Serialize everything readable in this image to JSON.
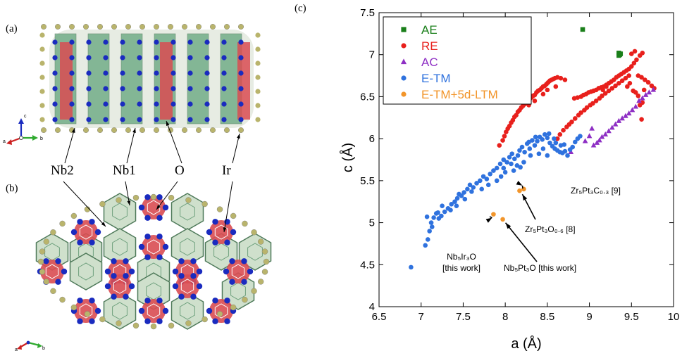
{
  "panels": {
    "a": "(a)",
    "b": "(b)",
    "c": "(c)"
  },
  "structure": {
    "labels": {
      "nb2": "Nb2",
      "nb1": "Nb1",
      "o": "O",
      "ir": "Ir"
    },
    "axes_a": {
      "c": "c",
      "a": "a",
      "b": "b"
    },
    "axes_b": {
      "a": "a",
      "b": "b"
    },
    "colors": {
      "nb": "#1a2bbf",
      "ir": "#b9b46c",
      "o": "#d33030",
      "poly_green": "#4f9a6c",
      "poly_red": "#d94c52"
    }
  },
  "chart_data": {
    "type": "scatter",
    "xlabel": "a (Å)",
    "ylabel": "c (Å)",
    "xlim": [
      6.5,
      10
    ],
    "ylim": [
      4,
      7.5
    ],
    "xticks": [
      "6.5",
      "7",
      "7.5",
      "8",
      "8.5",
      "9",
      "9.5",
      "10"
    ],
    "yticks": [
      "4",
      "4.5",
      "5",
      "5.5",
      "6",
      "6.5",
      "7",
      "7.5"
    ],
    "legend_position": "top-left",
    "series": [
      {
        "name": "AE",
        "marker": "square",
        "color": "#1a7f1a",
        "points": [
          [
            8.92,
            7.3
          ],
          [
            9.35,
            7.02
          ],
          [
            9.36,
            7.0
          ],
          [
            9.37,
            7.01
          ],
          [
            9.35,
            6.99
          ]
        ]
      },
      {
        "name": "RE",
        "marker": "circle",
        "color": "#e8201c",
        "points": [
          [
            7.93,
            5.92
          ],
          [
            7.97,
            5.98
          ],
          [
            7.99,
            6.03
          ],
          [
            8.01,
            6.08
          ],
          [
            8.03,
            6.12
          ],
          [
            8.05,
            6.15
          ],
          [
            8.07,
            6.19
          ],
          [
            8.09,
            6.22
          ],
          [
            8.11,
            6.26
          ],
          [
            8.13,
            6.28
          ],
          [
            8.15,
            6.32
          ],
          [
            8.17,
            6.34
          ],
          [
            8.19,
            6.37
          ],
          [
            8.21,
            6.39
          ],
          [
            8.23,
            6.41
          ],
          [
            8.25,
            6.43
          ],
          [
            8.27,
            6.45
          ],
          [
            8.29,
            6.47
          ],
          [
            8.31,
            6.49
          ],
          [
            8.33,
            6.51
          ],
          [
            8.35,
            6.52
          ],
          [
            8.37,
            6.55
          ],
          [
            8.39,
            6.57
          ],
          [
            8.41,
            6.58
          ],
          [
            8.43,
            6.6
          ],
          [
            8.45,
            6.62
          ],
          [
            8.47,
            6.63
          ],
          [
            8.49,
            6.65
          ],
          [
            8.51,
            6.67
          ],
          [
            8.53,
            6.69
          ],
          [
            8.55,
            6.7
          ],
          [
            8.57,
            6.71
          ],
          [
            8.59,
            6.72
          ],
          [
            8.62,
            6.73
          ],
          [
            8.66,
            6.72
          ],
          [
            8.71,
            6.7
          ],
          [
            8.82,
            6.48
          ],
          [
            8.86,
            6.49
          ],
          [
            8.9,
            6.5
          ],
          [
            8.93,
            6.52
          ],
          [
            8.96,
            6.53
          ],
          [
            8.99,
            6.55
          ],
          [
            9.02,
            6.56
          ],
          [
            9.05,
            6.57
          ],
          [
            9.08,
            6.58
          ],
          [
            9.11,
            6.6
          ],
          [
            9.14,
            6.61
          ],
          [
            9.17,
            6.62
          ],
          [
            9.2,
            6.64
          ],
          [
            9.23,
            6.66
          ],
          [
            9.26,
            6.68
          ],
          [
            9.29,
            6.7
          ],
          [
            9.32,
            6.73
          ],
          [
            9.35,
            6.75
          ],
          [
            9.38,
            6.77
          ],
          [
            9.41,
            6.79
          ],
          [
            9.44,
            6.81
          ],
          [
            9.47,
            6.83
          ],
          [
            9.5,
            6.86
          ],
          [
            9.53,
            6.9
          ],
          [
            9.56,
            6.94
          ],
          [
            9.6,
            6.99
          ],
          [
            9.63,
            7.02
          ],
          [
            9.5,
            7.01
          ],
          [
            9.54,
            7.04
          ],
          [
            9.58,
            6.75
          ],
          [
            9.62,
            6.73
          ],
          [
            9.66,
            6.7
          ],
          [
            9.7,
            6.67
          ],
          [
            9.74,
            6.63
          ],
          [
            9.77,
            6.6
          ],
          [
            8.62,
            6.0
          ],
          [
            8.65,
            6.05
          ],
          [
            8.69,
            6.1
          ],
          [
            8.73,
            6.14
          ],
          [
            8.76,
            6.17
          ],
          [
            8.79,
            6.2
          ],
          [
            8.83,
            6.24
          ],
          [
            8.87,
            6.28
          ],
          [
            8.9,
            6.31
          ],
          [
            8.94,
            6.34
          ],
          [
            8.97,
            6.37
          ],
          [
            9.01,
            6.4
          ],
          [
            9.04,
            6.42
          ],
          [
            9.08,
            6.45
          ],
          [
            9.12,
            6.48
          ],
          [
            9.15,
            6.51
          ],
          [
            9.19,
            6.54
          ],
          [
            9.23,
            6.57
          ],
          [
            9.27,
            6.6
          ],
          [
            9.31,
            6.63
          ],
          [
            9.35,
            6.66
          ],
          [
            9.39,
            6.69
          ],
          [
            9.43,
            6.72
          ],
          [
            9.47,
            6.75
          ],
          [
            9.52,
            6.57
          ],
          [
            9.55,
            6.55
          ],
          [
            9.6,
            6.4
          ],
          [
            9.63,
            6.43
          ],
          [
            9.62,
            6.23
          ],
          [
            9.58,
            6.51
          ],
          [
            9.65,
            6.58
          ],
          [
            8.45,
            6.53
          ],
          [
            8.5,
            6.58
          ],
          [
            8.6,
            6.62
          ],
          [
            8.35,
            6.45
          ],
          [
            8.28,
            6.4
          ],
          [
            9.16,
            6.58
          ],
          [
            9.2,
            6.62
          ],
          [
            9.45,
            6.62
          ],
          [
            9.48,
            6.66
          ]
        ]
      },
      {
        "name": "AC",
        "marker": "triangle",
        "color": "#8e2fc4",
        "points": [
          [
            9.05,
            5.92
          ],
          [
            9.09,
            5.95
          ],
          [
            9.12,
            5.98
          ],
          [
            9.15,
            6.02
          ],
          [
            9.19,
            6.05
          ],
          [
            9.23,
            6.09
          ],
          [
            9.27,
            6.13
          ],
          [
            9.31,
            6.17
          ],
          [
            9.35,
            6.21
          ],
          [
            9.39,
            6.24
          ],
          [
            9.43,
            6.27
          ],
          [
            9.47,
            6.3
          ],
          [
            9.51,
            6.34
          ],
          [
            9.55,
            6.38
          ],
          [
            9.59,
            6.45
          ],
          [
            9.63,
            6.48
          ],
          [
            9.67,
            6.52
          ],
          [
            9.71,
            6.55
          ],
          [
            9.76,
            6.58
          ],
          [
            8.78,
            5.84
          ],
          [
            8.95,
            5.97
          ],
          [
            9.03,
            6.12
          ],
          [
            9.0,
            6.03
          ]
        ]
      },
      {
        "name": "E-TM",
        "marker": "circle",
        "color": "#2f72de",
        "points": [
          [
            6.88,
            4.47
          ],
          [
            7.05,
            4.73
          ],
          [
            7.08,
            4.8
          ],
          [
            7.1,
            4.9
          ],
          [
            7.07,
            5.07
          ],
          [
            7.12,
            5.0
          ],
          [
            7.15,
            5.06
          ],
          [
            7.18,
            5.11
          ],
          [
            7.21,
            5.05
          ],
          [
            7.24,
            5.08
          ],
          [
            7.28,
            5.13
          ],
          [
            7.32,
            5.17
          ],
          [
            7.36,
            5.22
          ],
          [
            7.4,
            5.25
          ],
          [
            7.43,
            5.29
          ],
          [
            7.45,
            5.34
          ],
          [
            7.48,
            5.32
          ],
          [
            7.51,
            5.36
          ],
          [
            7.55,
            5.4
          ],
          [
            7.58,
            5.45
          ],
          [
            7.62,
            5.42
          ],
          [
            7.66,
            5.47
          ],
          [
            7.7,
            5.5
          ],
          [
            7.74,
            5.55
          ],
          [
            7.78,
            5.52
          ],
          [
            7.82,
            5.58
          ],
          [
            7.86,
            5.62
          ],
          [
            7.9,
            5.65
          ],
          [
            7.94,
            5.7
          ],
          [
            7.98,
            5.75
          ],
          [
            8.02,
            5.72
          ],
          [
            8.05,
            5.78
          ],
          [
            8.08,
            5.82
          ],
          [
            8.11,
            5.76
          ],
          [
            8.14,
            5.68
          ],
          [
            8.17,
            5.86
          ],
          [
            8.2,
            5.9
          ],
          [
            8.23,
            5.84
          ],
          [
            8.26,
            5.94
          ],
          [
            8.29,
            5.88
          ],
          [
            8.32,
            5.98
          ],
          [
            8.35,
            5.92
          ],
          [
            8.38,
            5.97
          ],
          [
            8.41,
            6.02
          ],
          [
            8.44,
            5.99
          ],
          [
            8.47,
            6.05
          ],
          [
            8.5,
            6.01
          ],
          [
            8.53,
            5.95
          ],
          [
            8.56,
            5.91
          ],
          [
            8.59,
            5.88
          ],
          [
            8.62,
            5.86
          ],
          [
            8.65,
            5.84
          ],
          [
            8.68,
            5.83
          ],
          [
            8.71,
            5.85
          ],
          [
            8.74,
            5.8
          ],
          [
            8.77,
            5.87
          ],
          [
            8.8,
            5.9
          ],
          [
            8.83,
            5.96
          ],
          [
            8.86,
            6.0
          ],
          [
            8.89,
            6.03
          ],
          [
            8.5,
            5.8
          ],
          [
            8.45,
            5.88
          ],
          [
            8.4,
            5.82
          ],
          [
            8.3,
            5.8
          ],
          [
            8.22,
            5.72
          ],
          [
            8.18,
            5.66
          ],
          [
            8.1,
            5.62
          ],
          [
            8.0,
            5.6
          ],
          [
            7.95,
            5.55
          ],
          [
            7.9,
            5.5
          ],
          [
            7.8,
            5.45
          ],
          [
            7.72,
            5.4
          ],
          [
            7.6,
            5.37
          ],
          [
            7.52,
            5.28
          ],
          [
            7.42,
            5.2
          ],
          [
            7.35,
            5.15
          ],
          [
            7.25,
            5.2
          ],
          [
            7.2,
            5.12
          ],
          [
            7.13,
            4.95
          ],
          [
            8.6,
            5.95
          ],
          [
            8.66,
            5.92
          ],
          [
            8.7,
            5.93
          ],
          [
            8.58,
            6.0
          ],
          [
            8.52,
            6.06
          ],
          [
            8.36,
            6.02
          ],
          [
            8.28,
            5.96
          ],
          [
            8.15,
            5.8
          ],
          [
            8.07,
            5.7
          ],
          [
            7.98,
            5.65
          ]
        ]
      },
      {
        "name": "E-TM+5d-LTM",
        "marker": "circle",
        "color": "#f2952a",
        "points": [
          [
            7.86,
            5.1
          ],
          [
            7.97,
            5.04
          ],
          [
            8.17,
            5.38
          ],
          [
            8.22,
            5.4
          ]
        ]
      }
    ],
    "annotations": [
      {
        "lines": [
          "Zr₅Pt₃C₀.₃  [9]"
        ],
        "target": [
          8.22,
          5.4
        ]
      },
      {
        "lines": [
          "Zr₅Pt₃O₀.₆  [8]"
        ],
        "target": [
          8.17,
          5.38
        ]
      },
      {
        "lines": [
          "Nb₅Ir₃O",
          "[this work]"
        ],
        "target": [
          7.86,
          5.1
        ]
      },
      {
        "lines": [
          "Nb₅Pt₃O  [this work]"
        ],
        "target": [
          7.97,
          5.04
        ]
      }
    ]
  }
}
